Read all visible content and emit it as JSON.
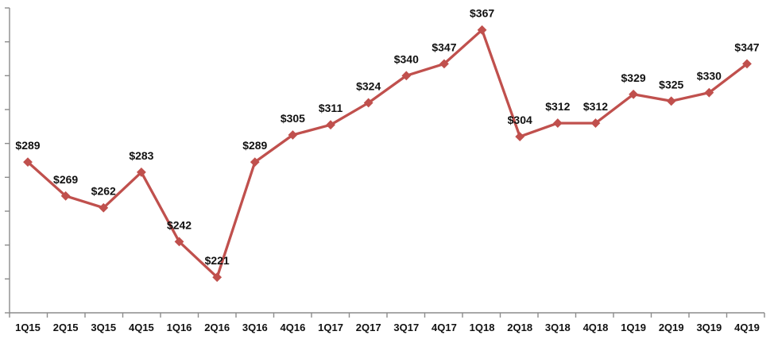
{
  "chart_data": {
    "type": "line",
    "title": "",
    "xlabel": "",
    "ylabel": "",
    "categories": [
      "1Q15",
      "2Q15",
      "3Q15",
      "4Q15",
      "1Q16",
      "2Q16",
      "3Q16",
      "4Q16",
      "1Q17",
      "2Q17",
      "3Q17",
      "4Q17",
      "1Q18",
      "2Q18",
      "3Q18",
      "4Q18",
      "1Q19",
      "2Q19",
      "3Q19",
      "4Q19"
    ],
    "series": [
      {
        "values": [
          289,
          269,
          262,
          283,
          242,
          221,
          289,
          305,
          311,
          324,
          340,
          347,
          367,
          304,
          312,
          312,
          329,
          325,
          330,
          347
        ],
        "labels": [
          "$289",
          "$269",
          "$262",
          "$283",
          "$242",
          "$221",
          "$289",
          "$305",
          "$311",
          "$324",
          "$340",
          "$347",
          "$367",
          "$304",
          "$312",
          "$312",
          "$329",
          "$325",
          "$330",
          "$347"
        ],
        "color": "#c0504d",
        "marker": "diamond"
      }
    ],
    "ylim": [
      200,
      380
    ],
    "y_tick_step": 20,
    "y_tick_labels_shown": false,
    "grid": false,
    "legend": "none"
  }
}
